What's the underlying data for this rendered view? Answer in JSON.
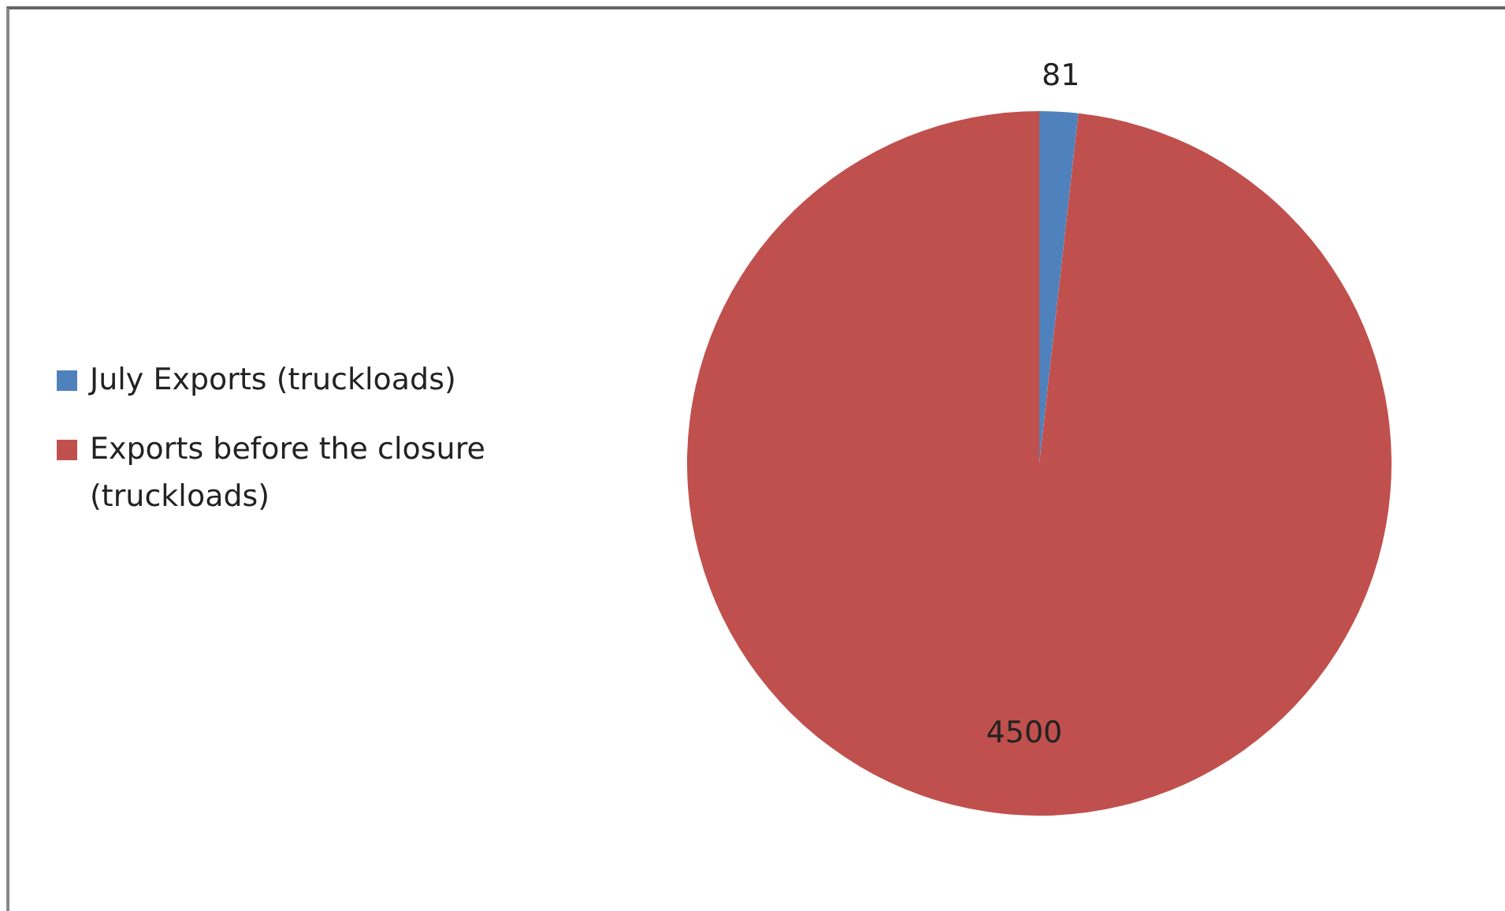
{
  "chart_data": {
    "type": "pie",
    "categories": [
      "July Exports (truckloads)",
      "Exports before the closure (truckloads)"
    ],
    "values": [
      81,
      4500
    ],
    "colors": [
      "#4f81bd",
      "#c0504d"
    ],
    "data_labels": true,
    "legend": "left"
  }
}
